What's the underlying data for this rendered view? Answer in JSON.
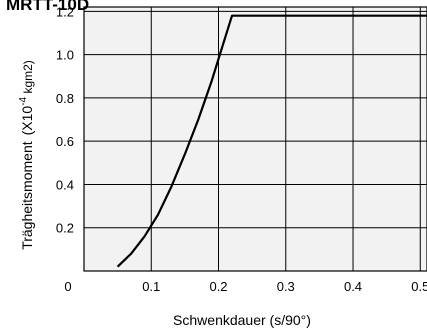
{
  "chart_data": {
    "type": "line",
    "title": "MRTT-10D",
    "xlabel": "Schwenkdauer (s/90°)",
    "ylabel_main": "Trägheitsmoment",
    "ylabel_unit_prefix": "(X10",
    "ylabel_unit_exp": "-4",
    "ylabel_unit_suffix": " kgm2)",
    "xlim": [
      0.0,
      0.51
    ],
    "ylim": [
      0.0,
      1.22
    ],
    "x_ticks": [
      0.1,
      0.2,
      0.3,
      0.4,
      0.5
    ],
    "x_tick_labels": [
      "0.1",
      "0.2",
      "0.3",
      "0.4",
      "0.5"
    ],
    "y_ticks": [
      0.2,
      0.4,
      0.6,
      0.8,
      1.0,
      1.2
    ],
    "y_tick_labels": [
      "0.2",
      "0.4",
      "0.6",
      "0.8",
      "1.0",
      "1.2"
    ],
    "origin_label": "0",
    "grid": true,
    "series": [
      {
        "x": [
          0.05,
          0.07,
          0.09,
          0.11,
          0.13,
          0.15,
          0.17,
          0.19,
          0.2,
          0.22,
          0.51
        ],
        "y": [
          0.02,
          0.08,
          0.16,
          0.26,
          0.39,
          0.54,
          0.7,
          0.88,
          0.98,
          1.18,
          1.18
        ]
      }
    ]
  }
}
